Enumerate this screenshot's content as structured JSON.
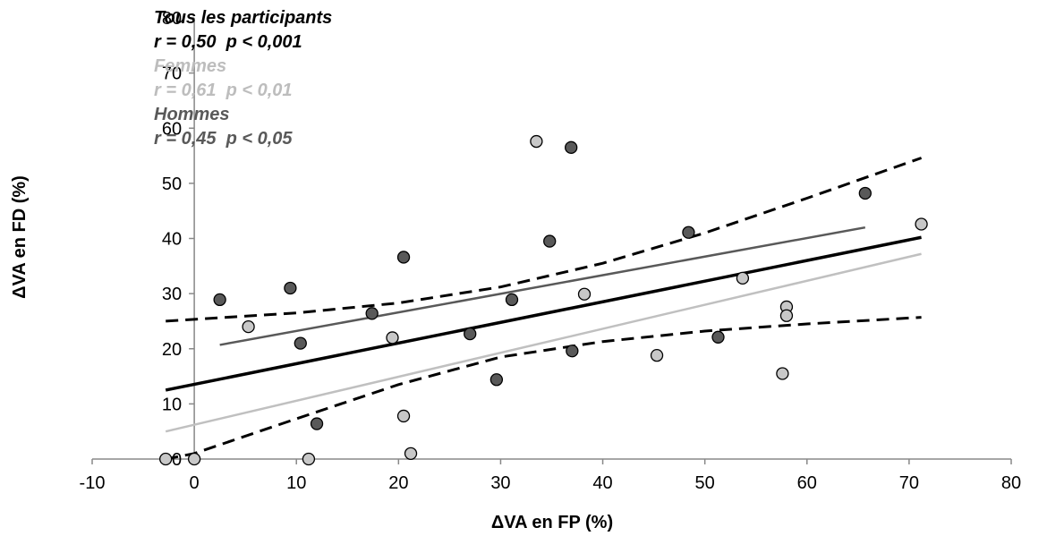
{
  "chart_data": {
    "type": "scatter",
    "title": "",
    "xlabel": "ΔVA en FP (%)",
    "ylabel": "ΔVA en FD (%)",
    "xlim": [
      -10,
      80
    ],
    "ylim": [
      0,
      80
    ],
    "xticks": [
      -10,
      0,
      10,
      20,
      30,
      40,
      50,
      60,
      70,
      80
    ],
    "yticks": [
      0,
      10,
      20,
      30,
      40,
      50,
      60,
      70,
      80
    ],
    "grid": false,
    "legend": [
      {
        "label": "Tous les participants",
        "stat": "r = 0,50  p < 0,001",
        "color": "#000000"
      },
      {
        "label": "Femmes",
        "stat": "r = 0,61  p < 0,01",
        "color": "#bdbdbd"
      },
      {
        "label": "Hommes",
        "stat": "r = 0,45  p < 0,05",
        "color": "#595959"
      }
    ],
    "series": [
      {
        "name": "Femmes",
        "color": "#c8c8c8",
        "points": [
          [
            -2.8,
            0
          ],
          [
            0,
            0
          ],
          [
            5.3,
            24
          ],
          [
            11.2,
            0
          ],
          [
            19.4,
            22
          ],
          [
            20.5,
            7.8
          ],
          [
            21.2,
            1
          ],
          [
            33.5,
            57.6
          ],
          [
            38.2,
            29.9
          ],
          [
            45.3,
            18.8
          ],
          [
            53.7,
            32.8
          ],
          [
            57.6,
            15.5
          ],
          [
            58,
            27.6
          ],
          [
            58,
            26
          ],
          [
            71.2,
            42.6
          ]
        ]
      },
      {
        "name": "Hommes",
        "color": "#595959",
        "points": [
          [
            2.5,
            28.9
          ],
          [
            9.4,
            31
          ],
          [
            10.4,
            21
          ],
          [
            12,
            6.4
          ],
          [
            17.4,
            26.4
          ],
          [
            20.5,
            36.6
          ],
          [
            27,
            22.7
          ],
          [
            29.6,
            14.4
          ],
          [
            31.1,
            28.9
          ],
          [
            34.8,
            39.5
          ],
          [
            36.9,
            56.5
          ],
          [
            37,
            19.6
          ],
          [
            48.4,
            41.1
          ],
          [
            51.3,
            22.1
          ],
          [
            65.7,
            48.2
          ]
        ]
      }
    ],
    "regressions": [
      {
        "name": "Tous les participants",
        "color": "#000000",
        "x": [
          -2.8,
          71.2
        ],
        "y": [
          12.5,
          40.2
        ]
      },
      {
        "name": "Femmes",
        "color": "#c0c0c0",
        "x": [
          -2.8,
          71.2
        ],
        "y": [
          5,
          37.2
        ]
      },
      {
        "name": "Hommes",
        "color": "#595959",
        "x": [
          2.5,
          65.7
        ],
        "y": [
          20.7,
          42
        ]
      }
    ],
    "confidence_band": {
      "upper": {
        "x": [
          -2.8,
          10,
          20,
          30,
          40,
          50,
          60,
          71.2
        ],
        "y": [
          25,
          26.5,
          28.3,
          31.2,
          35.5,
          41,
          47.3,
          54.6
        ]
      },
      "lower": {
        "x": [
          -2.8,
          0,
          10,
          20,
          30,
          40,
          50,
          60,
          71.2
        ],
        "y": [
          0,
          1,
          7.3,
          13.5,
          18.5,
          21.3,
          23.2,
          24.5,
          25.7
        ]
      }
    }
  }
}
